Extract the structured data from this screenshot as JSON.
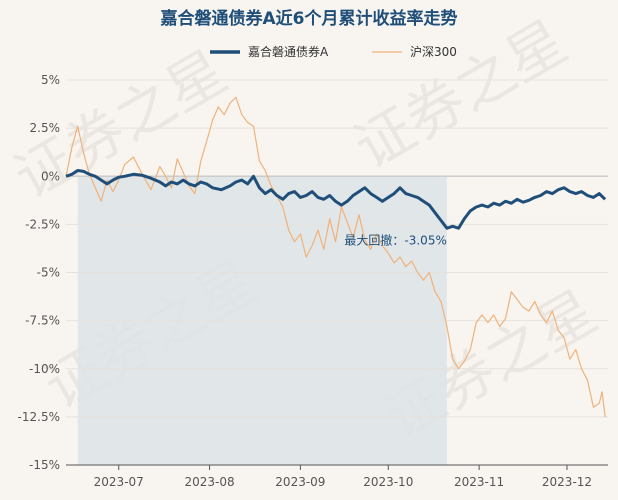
{
  "watermark": "证券之星",
  "chart_data": {
    "type": "line",
    "title": "嘉合磐通债券A近6个月累计收益率走势",
    "xlabel": "",
    "ylabel": "",
    "ylim": [
      -15,
      5
    ],
    "yticks": [
      5,
      2.5,
      0,
      -2.5,
      -5,
      -7.5,
      -10,
      -12.5,
      -15
    ],
    "ytick_labels": [
      "5%",
      "2.5%",
      "0%",
      "-2.5%",
      "-5%",
      "-7.5%",
      "-10%",
      "-12.5%",
      "-15%"
    ],
    "xlim": [
      "2023-06-13",
      "2023-12-15"
    ],
    "xticks": [
      "2023-07-01",
      "2023-08-01",
      "2023-09-01",
      "2023-10-01",
      "2023-11-01",
      "2023-12-01"
    ],
    "xtick_labels": [
      "2023-07",
      "2023-08",
      "2023-09",
      "2023-10",
      "2023-11",
      "2023-12"
    ],
    "legend_position": "top-center",
    "grid": "horizontal",
    "max_drawdown": {
      "label": "最大回撤：-3.05%",
      "start": "2023-06-17",
      "end": "2023-10-21"
    },
    "series": [
      {
        "name": "嘉合磐通债券A",
        "color": "#1f4e79",
        "points": [
          [
            "2023-06-13",
            0.0
          ],
          [
            "2023-06-15",
            0.1
          ],
          [
            "2023-06-17",
            0.3
          ],
          [
            "2023-06-19",
            0.25
          ],
          [
            "2023-06-21",
            0.1
          ],
          [
            "2023-06-23",
            0.0
          ],
          [
            "2023-06-25",
            -0.2
          ],
          [
            "2023-06-27",
            -0.4
          ],
          [
            "2023-06-29",
            -0.2
          ],
          [
            "2023-07-01",
            -0.05
          ],
          [
            "2023-07-03",
            0.0
          ],
          [
            "2023-07-06",
            0.1
          ],
          [
            "2023-07-09",
            0.05
          ],
          [
            "2023-07-12",
            -0.1
          ],
          [
            "2023-07-15",
            -0.3
          ],
          [
            "2023-07-17",
            -0.5
          ],
          [
            "2023-07-19",
            -0.3
          ],
          [
            "2023-07-21",
            -0.4
          ],
          [
            "2023-07-23",
            -0.2
          ],
          [
            "2023-07-25",
            -0.4
          ],
          [
            "2023-07-27",
            -0.5
          ],
          [
            "2023-07-29",
            -0.3
          ],
          [
            "2023-07-31",
            -0.4
          ],
          [
            "2023-08-02",
            -0.6
          ],
          [
            "2023-08-05",
            -0.7
          ],
          [
            "2023-08-08",
            -0.5
          ],
          [
            "2023-08-10",
            -0.3
          ],
          [
            "2023-08-12",
            -0.2
          ],
          [
            "2023-08-14",
            -0.4
          ],
          [
            "2023-08-16",
            0.0
          ],
          [
            "2023-08-18",
            -0.6
          ],
          [
            "2023-08-20",
            -0.9
          ],
          [
            "2023-08-22",
            -0.7
          ],
          [
            "2023-08-24",
            -1.0
          ],
          [
            "2023-08-26",
            -1.2
          ],
          [
            "2023-08-28",
            -0.9
          ],
          [
            "2023-08-30",
            -0.8
          ],
          [
            "2023-09-01",
            -1.1
          ],
          [
            "2023-09-03",
            -1.0
          ],
          [
            "2023-09-05",
            -0.8
          ],
          [
            "2023-09-07",
            -1.1
          ],
          [
            "2023-09-09",
            -1.2
          ],
          [
            "2023-09-11",
            -1.0
          ],
          [
            "2023-09-13",
            -1.3
          ],
          [
            "2023-09-15",
            -1.5
          ],
          [
            "2023-09-17",
            -1.3
          ],
          [
            "2023-09-19",
            -1.0
          ],
          [
            "2023-09-21",
            -0.8
          ],
          [
            "2023-09-23",
            -0.6
          ],
          [
            "2023-09-25",
            -0.9
          ],
          [
            "2023-09-27",
            -1.1
          ],
          [
            "2023-09-29",
            -1.3
          ],
          [
            "2023-10-01",
            -1.1
          ],
          [
            "2023-10-03",
            -0.9
          ],
          [
            "2023-10-05",
            -0.6
          ],
          [
            "2023-10-07",
            -0.9
          ],
          [
            "2023-10-09",
            -1.0
          ],
          [
            "2023-10-11",
            -1.1
          ],
          [
            "2023-10-13",
            -1.3
          ],
          [
            "2023-10-15",
            -1.5
          ],
          [
            "2023-10-17",
            -1.9
          ],
          [
            "2023-10-19",
            -2.3
          ],
          [
            "2023-10-21",
            -2.7
          ],
          [
            "2023-10-23",
            -2.6
          ],
          [
            "2023-10-25",
            -2.7
          ],
          [
            "2023-10-27",
            -2.2
          ],
          [
            "2023-10-29",
            -1.8
          ],
          [
            "2023-10-31",
            -1.6
          ],
          [
            "2023-11-02",
            -1.5
          ],
          [
            "2023-11-04",
            -1.6
          ],
          [
            "2023-11-06",
            -1.4
          ],
          [
            "2023-11-08",
            -1.5
          ],
          [
            "2023-11-10",
            -1.3
          ],
          [
            "2023-11-12",
            -1.4
          ],
          [
            "2023-11-14",
            -1.2
          ],
          [
            "2023-11-16",
            -1.35
          ],
          [
            "2023-11-18",
            -1.25
          ],
          [
            "2023-11-20",
            -1.1
          ],
          [
            "2023-11-22",
            -1.0
          ],
          [
            "2023-11-24",
            -0.8
          ],
          [
            "2023-11-26",
            -0.9
          ],
          [
            "2023-11-28",
            -0.7
          ],
          [
            "2023-11-30",
            -0.6
          ],
          [
            "2023-12-02",
            -0.8
          ],
          [
            "2023-12-04",
            -0.9
          ],
          [
            "2023-12-06",
            -0.8
          ],
          [
            "2023-12-08",
            -1.0
          ],
          [
            "2023-12-10",
            -1.1
          ],
          [
            "2023-12-12",
            -0.9
          ],
          [
            "2023-12-14",
            -1.2
          ]
        ]
      },
      {
        "name": "沪深300",
        "color": "#f0b27a",
        "points": [
          [
            "2023-06-13",
            0.0
          ],
          [
            "2023-06-15",
            1.5
          ],
          [
            "2023-06-17",
            2.6
          ],
          [
            "2023-06-19",
            1.2
          ],
          [
            "2023-06-21",
            0.1
          ],
          [
            "2023-06-23",
            -0.6
          ],
          [
            "2023-06-25",
            -1.3
          ],
          [
            "2023-06-27",
            -0.2
          ],
          [
            "2023-06-29",
            -0.8
          ],
          [
            "2023-07-01",
            -0.2
          ],
          [
            "2023-07-03",
            0.6
          ],
          [
            "2023-07-06",
            1.0
          ],
          [
            "2023-07-09",
            0.1
          ],
          [
            "2023-07-12",
            -0.7
          ],
          [
            "2023-07-15",
            0.5
          ],
          [
            "2023-07-17",
            0.0
          ],
          [
            "2023-07-19",
            -0.6
          ],
          [
            "2023-07-21",
            0.9
          ],
          [
            "2023-07-23",
            0.2
          ],
          [
            "2023-07-25",
            -0.5
          ],
          [
            "2023-07-27",
            -0.9
          ],
          [
            "2023-07-29",
            0.8
          ],
          [
            "2023-07-31",
            1.8
          ],
          [
            "2023-08-02",
            2.9
          ],
          [
            "2023-08-04",
            3.6
          ],
          [
            "2023-08-06",
            3.2
          ],
          [
            "2023-08-08",
            3.8
          ],
          [
            "2023-08-10",
            4.1
          ],
          [
            "2023-08-12",
            3.2
          ],
          [
            "2023-08-14",
            2.8
          ],
          [
            "2023-08-16",
            2.6
          ],
          [
            "2023-08-18",
            0.8
          ],
          [
            "2023-08-20",
            0.3
          ],
          [
            "2023-08-22",
            -0.5
          ],
          [
            "2023-08-24",
            -1.0
          ],
          [
            "2023-08-26",
            -1.6
          ],
          [
            "2023-08-28",
            -2.8
          ],
          [
            "2023-08-30",
            -3.4
          ],
          [
            "2023-09-01",
            -3.0
          ],
          [
            "2023-09-03",
            -4.2
          ],
          [
            "2023-09-05",
            -3.6
          ],
          [
            "2023-09-07",
            -2.8
          ],
          [
            "2023-09-09",
            -3.8
          ],
          [
            "2023-09-11",
            -2.2
          ],
          [
            "2023-09-13",
            -3.4
          ],
          [
            "2023-09-15",
            -1.6
          ],
          [
            "2023-09-17",
            -2.4
          ],
          [
            "2023-09-19",
            -3.2
          ],
          [
            "2023-09-21",
            -2.0
          ],
          [
            "2023-09-23",
            -3.3
          ],
          [
            "2023-09-25",
            -3.8
          ],
          [
            "2023-09-27",
            -3.0
          ],
          [
            "2023-09-29",
            -3.6
          ],
          [
            "2023-10-01",
            -4.0
          ],
          [
            "2023-10-03",
            -4.5
          ],
          [
            "2023-10-05",
            -4.2
          ],
          [
            "2023-10-07",
            -4.7
          ],
          [
            "2023-10-09",
            -4.4
          ],
          [
            "2023-10-11",
            -5.0
          ],
          [
            "2023-10-13",
            -5.4
          ],
          [
            "2023-10-15",
            -5.0
          ],
          [
            "2023-10-17",
            -6.0
          ],
          [
            "2023-10-19",
            -6.5
          ],
          [
            "2023-10-21",
            -7.8
          ],
          [
            "2023-10-23",
            -9.5
          ],
          [
            "2023-10-25",
            -10.0
          ],
          [
            "2023-10-27",
            -9.6
          ],
          [
            "2023-10-29",
            -9.0
          ],
          [
            "2023-10-31",
            -7.6
          ],
          [
            "2023-11-02",
            -7.2
          ],
          [
            "2023-11-04",
            -7.6
          ],
          [
            "2023-11-06",
            -7.2
          ],
          [
            "2023-11-08",
            -7.8
          ],
          [
            "2023-11-10",
            -7.4
          ],
          [
            "2023-11-12",
            -6.0
          ],
          [
            "2023-11-14",
            -6.4
          ],
          [
            "2023-11-16",
            -6.8
          ],
          [
            "2023-11-18",
            -7.0
          ],
          [
            "2023-11-20",
            -6.5
          ],
          [
            "2023-11-22",
            -7.2
          ],
          [
            "2023-11-24",
            -7.6
          ],
          [
            "2023-11-26",
            -7.0
          ],
          [
            "2023-11-28",
            -8.0
          ],
          [
            "2023-11-30",
            -8.4
          ],
          [
            "2023-12-02",
            -9.5
          ],
          [
            "2023-12-04",
            -9.0
          ],
          [
            "2023-12-06",
            -10.0
          ],
          [
            "2023-12-08",
            -10.6
          ],
          [
            "2023-12-10",
            -12.0
          ],
          [
            "2023-12-12",
            -11.8
          ],
          [
            "2023-12-13",
            -11.2
          ],
          [
            "2023-12-14",
            -12.5
          ]
        ]
      }
    ]
  }
}
